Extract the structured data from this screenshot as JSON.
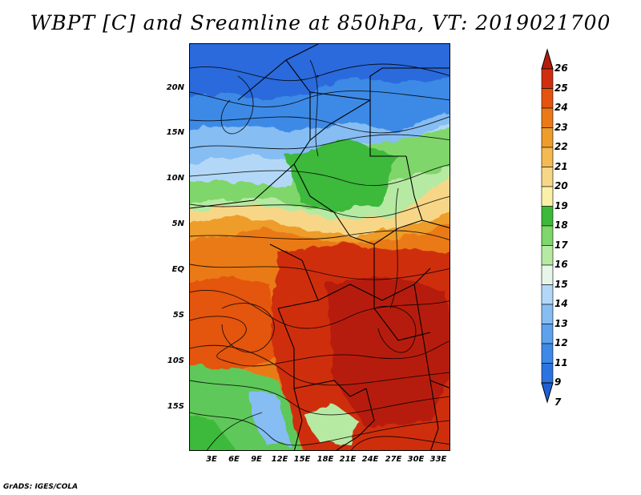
{
  "title": "WBPT [C] and Sreamline at 850hPa, VT: 2019021700",
  "footer": "GrADS: IGES/COLA",
  "map": {
    "lat_labels": [
      "20N",
      "15N",
      "10N",
      "5N",
      "EQ",
      "5S",
      "10S",
      "15S"
    ],
    "lon_labels": [
      "3E",
      "6E",
      "9E",
      "12E",
      "15E",
      "18E",
      "21E",
      "24E",
      "27E",
      "30E",
      "33E"
    ]
  },
  "colorbar": {
    "labels": [
      "7",
      "9",
      "11",
      "12",
      "13",
      "14",
      "15",
      "16",
      "17",
      "18",
      "19",
      "20",
      "21",
      "22",
      "23",
      "24",
      "25",
      "26"
    ],
    "colors": [
      "#1f5fd6",
      "#2b74e0",
      "#3d8ae6",
      "#5ea2ee",
      "#86bdf3",
      "#b3d8f7",
      "#e6f6e8",
      "#b6eaa3",
      "#7fd66b",
      "#3cb93a",
      "#fbf0a8",
      "#f7d787",
      "#f3ba54",
      "#ee9c2a",
      "#ea7a17",
      "#e4540f",
      "#cf2f10",
      "#b61c0d"
    ]
  },
  "colors": {
    "cold_blue": "#2a6bdc",
    "green": "#5fc85a",
    "orange": "#ee7a1f",
    "red": "#c8210e"
  }
}
